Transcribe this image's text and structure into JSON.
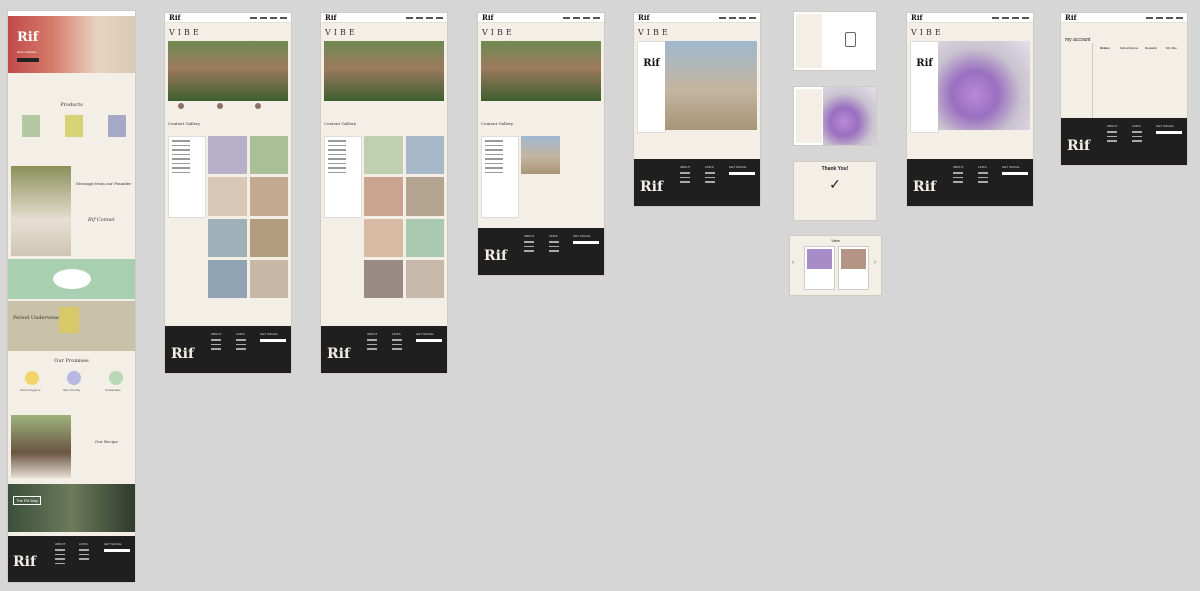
{
  "brand": {
    "logo": "Rif",
    "sub": "care"
  },
  "home": {
    "hero_tagline": "Each wellness...",
    "products_heading": "Products",
    "founder_heading": "Message from our Founder",
    "signature": "Rif Connel",
    "period_heading": "Period Underwear",
    "promises_heading": "Our Promises",
    "promises": [
      "Period Hygiene",
      "Skin Friendly",
      "Sustainable"
    ],
    "recipe_heading": "Our Recipe",
    "the_rif_way": "The Rif Way"
  },
  "vibe": {
    "title": "VIBE",
    "gallery_heading": "Content Gallery"
  },
  "thankyou": {
    "title": "Thank You!",
    "check": "✓"
  },
  "viewer": {
    "title": "View",
    "prev": "‹",
    "next": "›"
  },
  "account": {
    "title": "my account",
    "tabs": [
      "Orders",
      "Subscriptions",
      "Rewards",
      "My Vibe"
    ]
  },
  "footer": {
    "cols": [
      "ABOUT",
      "LINKS",
      "GET SOCIAL"
    ]
  },
  "colors": {
    "cream": "#f4efe6",
    "dark": "#1f1f1f",
    "mint": "#a8d0b0",
    "sage": "#c8c2a8"
  }
}
